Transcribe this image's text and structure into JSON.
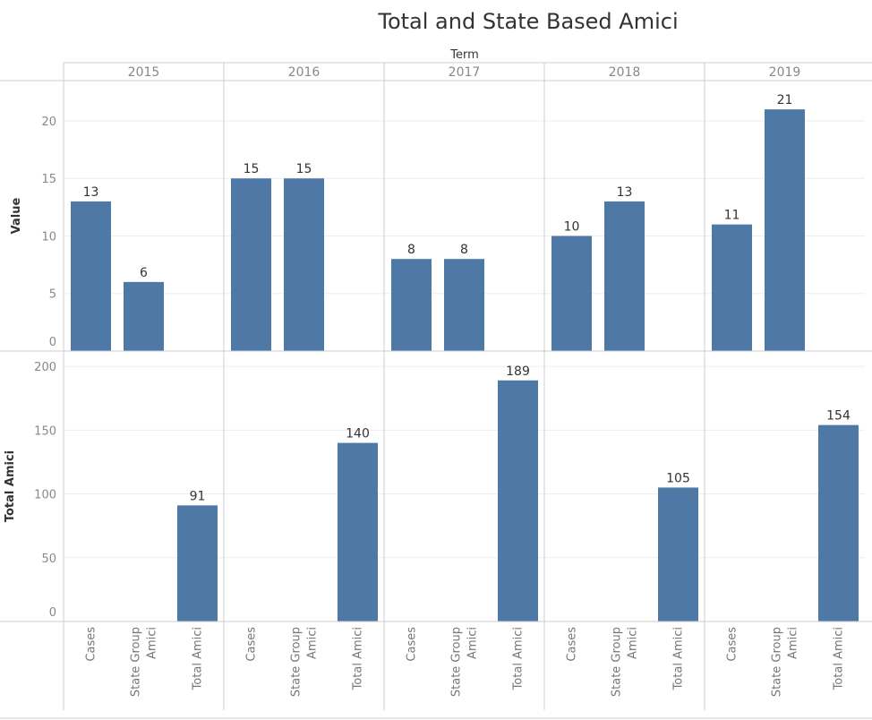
{
  "title": "Total and State Based Amici",
  "column_header": "Term",
  "colors": {
    "bar": "#4e79a7",
    "grid": "#eeeeee",
    "divider": "#cccccc"
  },
  "chart_data": {
    "type": "bar",
    "title": "Total and State Based Amici",
    "facet_label": "Term",
    "facets": [
      "2015",
      "2016",
      "2017",
      "2018",
      "2019"
    ],
    "categories": [
      [
        "Cases"
      ],
      [
        "State Group",
        "Amici"
      ],
      [
        "Total Amici"
      ]
    ],
    "panels": [
      {
        "ylabel": "Value",
        "ylim": [
          0,
          23.5
        ],
        "ticks": [
          0,
          5,
          10,
          15,
          20
        ],
        "series_by_facet": [
          [
            13,
            6,
            null
          ],
          [
            15,
            15,
            null
          ],
          [
            8,
            8,
            null
          ],
          [
            10,
            13,
            null
          ],
          [
            11,
            21,
            null
          ]
        ]
      },
      {
        "ylabel": "Total Amici",
        "ylim": [
          0,
          212
        ],
        "ticks": [
          0,
          50,
          100,
          150,
          200
        ],
        "series_by_facet": [
          [
            null,
            null,
            91
          ],
          [
            null,
            null,
            140
          ],
          [
            null,
            null,
            189
          ],
          [
            null,
            null,
            105
          ],
          [
            null,
            null,
            154
          ]
        ]
      }
    ],
    "grid": true,
    "legend": "none"
  }
}
